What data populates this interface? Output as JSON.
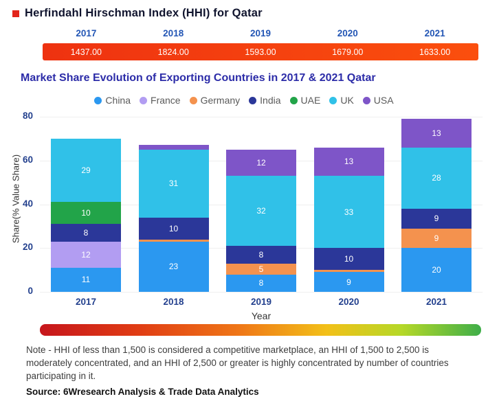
{
  "colors": {
    "accent_red_bullet": "#e2251b",
    "hhi_bar_gradient": [
      "#ee3210 0%",
      "#fb4f0e 100%"
    ],
    "hhi_scale_gradient": [
      "#c6161c 0%",
      "#e03c14 22%",
      "#ef7617 45%",
      "#f2c018 65%",
      "#b5d828 82%",
      "#3fae49 100%"
    ],
    "axis_label": "#24418e",
    "year_header": "#2356b5",
    "title_primary": "#10142e",
    "title_secondary": "#2c2ca8"
  },
  "chart_data": [
    {
      "type": "bar",
      "title": "Herfindahl Hirschman Index (HHI) for Qatar",
      "categories": [
        "2017",
        "2018",
        "2019",
        "2020",
        "2021"
      ],
      "values": [
        1437,
        1824,
        1593,
        1679,
        1633
      ],
      "value_labels": [
        "1437.00",
        "1824.00",
        "1593.00",
        "1679.00",
        "1633.00"
      ]
    },
    {
      "type": "bar",
      "stacked": true,
      "title": "Market Share Evolution of Exporting Countries in 2017 & 2021 Qatar",
      "categories": [
        "2017",
        "2018",
        "2019",
        "2020",
        "2021"
      ],
      "series": [
        {
          "name": "China",
          "color": "#2b98f0",
          "values": [
            11,
            23,
            8,
            9,
            20
          ]
        },
        {
          "name": "France",
          "color": "#b29df2",
          "values": [
            12,
            0,
            0,
            0,
            0
          ]
        },
        {
          "name": "Germany",
          "color": "#f4924e",
          "values": [
            0,
            1,
            5,
            1,
            9
          ]
        },
        {
          "name": "India",
          "color": "#2b3799",
          "values": [
            8,
            10,
            8,
            10,
            9
          ]
        },
        {
          "name": "UAE",
          "color": "#22a449",
          "values": [
            10,
            0,
            0,
            0,
            0
          ]
        },
        {
          "name": "UK",
          "color": "#30c1e8",
          "values": [
            29,
            31,
            32,
            33,
            28
          ]
        },
        {
          "name": "USA",
          "color": "#7e55c8",
          "values": [
            0,
            2,
            12,
            13,
            13
          ]
        }
      ],
      "xlabel": "Year",
      "ylabel": "Share(% Value Share)",
      "ylim": [
        0,
        80
      ],
      "yticks": [
        0,
        20,
        40,
        60,
        80
      ],
      "legend_position": "top",
      "label_min_value": 4
    }
  ],
  "note": {
    "text": "Note - HHI of less than 1,500 is considered a competitive marketplace, an HHI of 1,500 to 2,500 is moderately concentrated, and an HHI of 2,500 or greater is highly concentrated by number of countries participating in it."
  },
  "source": "Source: 6Wresearch Analysis & Trade Data Analytics"
}
